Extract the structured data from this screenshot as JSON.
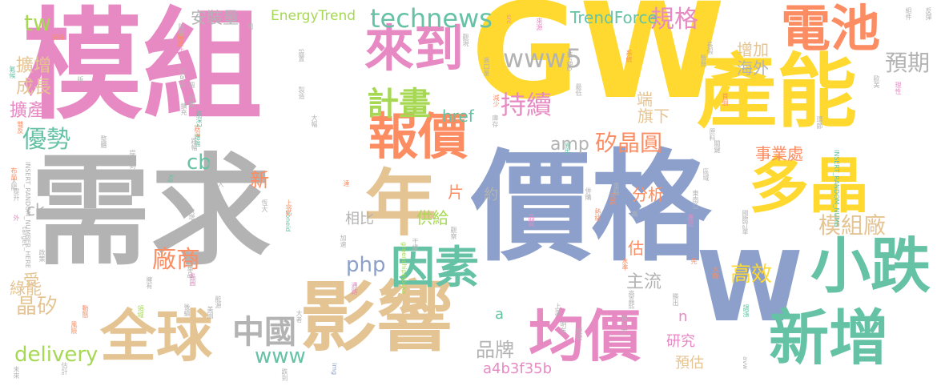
{
  "palette": {
    "pink": "#e78ac3",
    "yellow": "#ffd92f",
    "blue": "#8da0cb",
    "grey": "#b3b3b3",
    "tan": "#e5c494",
    "orange": "#fc8d62",
    "teal": "#66c2a5",
    "lime": "#a6d854"
  },
  "words": [
    {
      "t": "模組",
      "c": "pink",
      "w": 1
    },
    {
      "t": "GW",
      "c": "yellow",
      "w": 1
    },
    {
      "t": "價格",
      "c": "blue",
      "w": 1
    },
    {
      "t": "需求",
      "c": "grey",
      "w": 1
    },
    {
      "t": "產能",
      "c": "yellow",
      "w": 1
    },
    {
      "t": "影響",
      "c": "tan",
      "w": 1
    },
    {
      "t": "W",
      "c": "blue",
      "w": 1
    },
    {
      "t": "電池",
      "c": "orange",
      "w": 1
    },
    {
      "t": "多晶",
      "c": "yellow",
      "w": 1
    },
    {
      "t": "小跌",
      "c": "teal",
      "w": 1
    },
    {
      "t": "新增",
      "c": "teal",
      "w": 1
    },
    {
      "t": "全球",
      "c": "tan",
      "w": 1
    },
    {
      "t": "均價",
      "c": "pink",
      "w": 1
    },
    {
      "t": "年",
      "c": "tan",
      "w": 1
    },
    {
      "t": "報價",
      "c": "orange",
      "w": 1
    },
    {
      "t": "來到",
      "c": "pink",
      "w": 1
    },
    {
      "t": "因素",
      "c": "teal",
      "w": 1
    },
    {
      "t": "中國",
      "c": "grey",
      "w": 1
    },
    {
      "t": "計畫",
      "c": "lime",
      "w": 1
    },
    {
      "t": "technews",
      "c": "teal",
      "w": 1
    },
    {
      "t": "www5",
      "c": "grey",
      "w": 1
    },
    {
      "t": "持續",
      "c": "pink",
      "w": 1
    },
    {
      "t": "規格",
      "c": "pink",
      "w": 1
    },
    {
      "t": "預期",
      "c": "grey",
      "w": 1
    },
    {
      "t": "模組廠",
      "c": "tan",
      "w": 1
    },
    {
      "t": "矽晶圓",
      "c": "orange",
      "w": 1
    },
    {
      "t": "amp",
      "c": "grey",
      "w": 1
    },
    {
      "t": "php",
      "c": "blue",
      "w": 1
    },
    {
      "t": "www",
      "c": "teal",
      "w": 1
    },
    {
      "t": "品牌",
      "c": "grey",
      "w": 1
    },
    {
      "t": "tw",
      "c": "lime",
      "w": 1
    },
    {
      "t": "優勢",
      "c": "teal",
      "w": 1
    },
    {
      "t": "cb",
      "c": "teal",
      "w": 1
    },
    {
      "t": "delivery",
      "c": "lime",
      "w": 1
    },
    {
      "t": "晶矽",
      "c": "tan",
      "w": 1
    },
    {
      "t": "高效",
      "c": "yellow",
      "w": 1
    },
    {
      "t": "a4b3f35b",
      "c": "pink",
      "w": 1
    },
    {
      "t": "廠商",
      "c": "orange",
      "w": 1
    },
    {
      "t": "供給",
      "c": "lime",
      "w": 1
    },
    {
      "t": "主流",
      "c": "grey",
      "w": 1
    },
    {
      "t": "相比",
      "c": "grey",
      "w": 1
    },
    {
      "t": "分析",
      "c": "orange",
      "w": 1
    },
    {
      "t": "事業處",
      "c": "orange",
      "w": 1
    },
    {
      "t": "研究",
      "c": "pink",
      "w": 1
    },
    {
      "t": "預估",
      "c": "tan",
      "w": 1
    },
    {
      "t": "TrendForce",
      "c": "teal",
      "w": 1
    },
    {
      "t": "EnergyTrend",
      "c": "lime",
      "w": 1
    },
    {
      "t": "安裝量",
      "c": "grey",
      "w": 1
    },
    {
      "t": "海外",
      "c": "grey",
      "w": 1
    },
    {
      "t": "增加",
      "c": "tan",
      "w": 1
    },
    {
      "t": "href",
      "c": "teal",
      "w": 1
    },
    {
      "t": "擴增",
      "c": "tan",
      "w": 1
    },
    {
      "t": "成長",
      "c": "tan",
      "w": 1
    },
    {
      "t": "擴產",
      "c": "pink",
      "w": 1
    },
    {
      "t": "綠能",
      "c": "tan",
      "w": 1
    },
    {
      "t": "受",
      "c": "tan",
      "w": 1
    },
    {
      "t": "ck",
      "c": "grey",
      "w": 1
    },
    {
      "t": "新",
      "c": "orange",
      "w": 1
    },
    {
      "t": "片",
      "c": "orange",
      "w": 1
    },
    {
      "t": "約",
      "c": "grey",
      "w": 1
    },
    {
      "t": "端",
      "c": "tan",
      "w": 1
    },
    {
      "t": "旗下",
      "c": "tan",
      "w": 1
    },
    {
      "t": "估",
      "c": "orange",
      "w": 1
    },
    {
      "t": "a",
      "c": "teal",
      "w": 1
    },
    {
      "t": "n",
      "c": "pink",
      "w": 1
    },
    {
      "t": "_blank",
      "c": "grey",
      "w": 1
    },
    {
      "t": "INSERT_RANDOM_NUMBER_HERE",
      "c": "grey",
      "w": 1
    },
    {
      "t": "INSERT_RANDOM_NUMB",
      "c": "teal",
      "w": 1
    },
    {
      "t": "greenchipstocks",
      "c": "lime",
      "w": 1
    },
    {
      "t": "zoneid",
      "c": "teal",
      "w": 1
    },
    {
      "t": "target",
      "c": "grey",
      "w": 1
    },
    {
      "t": "src",
      "c": "pink",
      "w": 1
    },
    {
      "t": "kg",
      "c": "teal",
      "w": 1
    },
    {
      "t": "img",
      "c": "blue",
      "w": 1
    },
    {
      "t": "avw",
      "c": "grey",
      "w": 1
    },
    {
      "t": "技術",
      "c": "orange",
      "w": 1
    },
    {
      "t": "上揚",
      "c": "pink",
      "w": 1
    },
    {
      "t": "設置",
      "c": "grey",
      "w": 1
    },
    {
      "t": "製造",
      "c": "grey",
      "w": 1
    },
    {
      "t": "大幅",
      "c": "grey",
      "w": 1
    },
    {
      "t": "減少",
      "c": "orange",
      "w": 1
    },
    {
      "t": "庫存",
      "c": "grey",
      "w": 1
    },
    {
      "t": "進口量",
      "c": "grey",
      "w": 1
    },
    {
      "t": "華晶矽",
      "c": "grey",
      "w": 1
    },
    {
      "t": "來源",
      "c": "pink",
      "w": 1
    },
    {
      "t": "系統",
      "c": "orange",
      "w": 1
    },
    {
      "t": "長假",
      "c": "grey",
      "w": 1
    },
    {
      "t": "暫無",
      "c": "grey",
      "w": 1
    },
    {
      "t": "組件",
      "c": "grey",
      "w": 1
    },
    {
      "t": "反彈",
      "c": "grey",
      "w": 1
    },
    {
      "t": "歐美",
      "c": "grey",
      "w": 1
    },
    {
      "t": "理性",
      "c": "pink",
      "w": 1
    },
    {
      "t": "首個",
      "c": "orange",
      "w": 1
    },
    {
      "t": "原料",
      "c": "grey",
      "w": 1
    },
    {
      "t": "關鍵",
      "c": "grey",
      "w": 1
    },
    {
      "t": "區域",
      "c": "grey",
      "w": 1
    },
    {
      "t": "東南亞",
      "c": "grey",
      "w": 1
    },
    {
      "t": "重點",
      "c": "grey",
      "w": 1
    },
    {
      "t": "走跌",
      "c": "orange",
      "w": 1
    },
    {
      "t": "產品",
      "c": "pink",
      "w": 1
    },
    {
      "t": "國際",
      "c": "grey",
      "w": 1
    },
    {
      "t": "訂單",
      "c": "grey",
      "w": 1
    },
    {
      "t": "水準",
      "c": "orange",
      "w": 1
    },
    {
      "t": "大廠",
      "c": "orange",
      "w": 1
    },
    {
      "t": "高嘉熙",
      "c": "grey",
      "w": 1
    },
    {
      "t": "勝出",
      "c": "grey",
      "w": 1
    },
    {
      "t": "調漲",
      "c": "teal",
      "w": 1
    },
    {
      "t": "進一步",
      "c": "grey",
      "w": 1
    },
    {
      "t": "明年",
      "c": "grey",
      "w": 1
    },
    {
      "t": "上游",
      "c": "grey",
      "w": 1
    },
    {
      "t": "經營",
      "c": "grey",
      "w": 1
    },
    {
      "t": "品質",
      "c": "pink",
      "w": 1
    },
    {
      "t": "觀察",
      "c": "grey",
      "w": 1
    },
    {
      "t": "干擾",
      "c": "grey",
      "w": 1
    },
    {
      "t": "通路",
      "c": "pink",
      "w": 1
    },
    {
      "t": "加速",
      "c": "grey",
      "w": 1
    },
    {
      "t": "大者",
      "c": "grey",
      "w": 1
    },
    {
      "t": "能源",
      "c": "grey",
      "w": 1
    },
    {
      "t": "美國",
      "c": "grey",
      "w": 1
    },
    {
      "t": "後續",
      "c": "grey",
      "w": 1
    },
    {
      "t": "領域",
      "c": "lime",
      "w": 1
    },
    {
      "t": "風險",
      "c": "orange",
      "w": 1
    },
    {
      "t": "動態",
      "c": "orange",
      "w": 1
    },
    {
      "t": "跌到",
      "c": "grey",
      "w": 1
    },
    {
      "t": "估計",
      "c": "grey",
      "w": 1
    },
    {
      "t": "未來",
      "c": "grey",
      "w": 1
    },
    {
      "t": "擁有",
      "c": "grey",
      "w": 1
    },
    {
      "t": "華晶",
      "c": "grey",
      "w": 1
    },
    {
      "t": "晶圓",
      "c": "pink",
      "w": 1
    },
    {
      "t": "政策",
      "c": "grey",
      "w": 1
    },
    {
      "t": "外",
      "c": "pink",
      "w": 1
    },
    {
      "t": "提升",
      "c": "grey",
      "w": 1
    },
    {
      "t": "太陽",
      "c": "grey",
      "w": 1
    },
    {
      "t": "布局",
      "c": "orange",
      "w": 1
    },
    {
      "t": "提升到",
      "c": "grey",
      "w": 1
    },
    {
      "t": "整體",
      "c": "grey",
      "w": 1
    },
    {
      "t": "增強",
      "c": "teal",
      "w": 1
    },
    {
      "t": "跌深",
      "c": "orange",
      "w": 1
    },
    {
      "t": "跌幅",
      "c": "grey",
      "w": 1
    },
    {
      "t": "跌深2",
      "c": "teal",
      "w": 1
    },
    {
      "t": "分散",
      "c": "grey",
      "w": 1
    },
    {
      "t": "週",
      "c": "grey",
      "w": 1
    },
    {
      "t": "雙反",
      "c": "orange",
      "w": 1
    },
    {
      "t": "氣候",
      "c": "teal",
      "w": 1
    },
    {
      "t": "擴充",
      "c": "grey",
      "w": 1
    },
    {
      "t": "周",
      "c": "grey",
      "w": 1
    },
    {
      "t": "終端",
      "c": "grey",
      "w": 1
    },
    {
      "t": "恆大",
      "c": "grey",
      "w": 1
    },
    {
      "t": "疲軟",
      "c": "grey",
      "w": 1
    },
    {
      "t": "大增",
      "c": "grey",
      "w": 1
    },
    {
      "t": "上游2",
      "c": "orange",
      "w": 1
    },
    {
      "t": "達",
      "c": "orange",
      "w": 1
    },
    {
      "t": "跨入",
      "c": "grey",
      "w": 1
    },
    {
      "t": "開放",
      "c": "orange",
      "w": 1
    },
    {
      "t": "拆",
      "c": "grey",
      "w": 1
    },
    {
      "t": "陣營",
      "c": "grey",
      "w": 1
    },
    {
      "t": "先",
      "c": "orange",
      "w": 1
    },
    {
      "t": "原先",
      "c": "teal",
      "w": 1
    },
    {
      "t": "高",
      "c": "grey",
      "w": 1
    },
    {
      "t": "環節",
      "c": "grey",
      "w": 1
    },
    {
      "t": "觀現",
      "c": "grey",
      "w": 1
    },
    {
      "t": "併購",
      "c": "grey",
      "w": 1
    },
    {
      "t": "熱絡",
      "c": "orange",
      "w": 1
    },
    {
      "t": "最低",
      "c": "grey",
      "w": 1
    }
  ]
}
